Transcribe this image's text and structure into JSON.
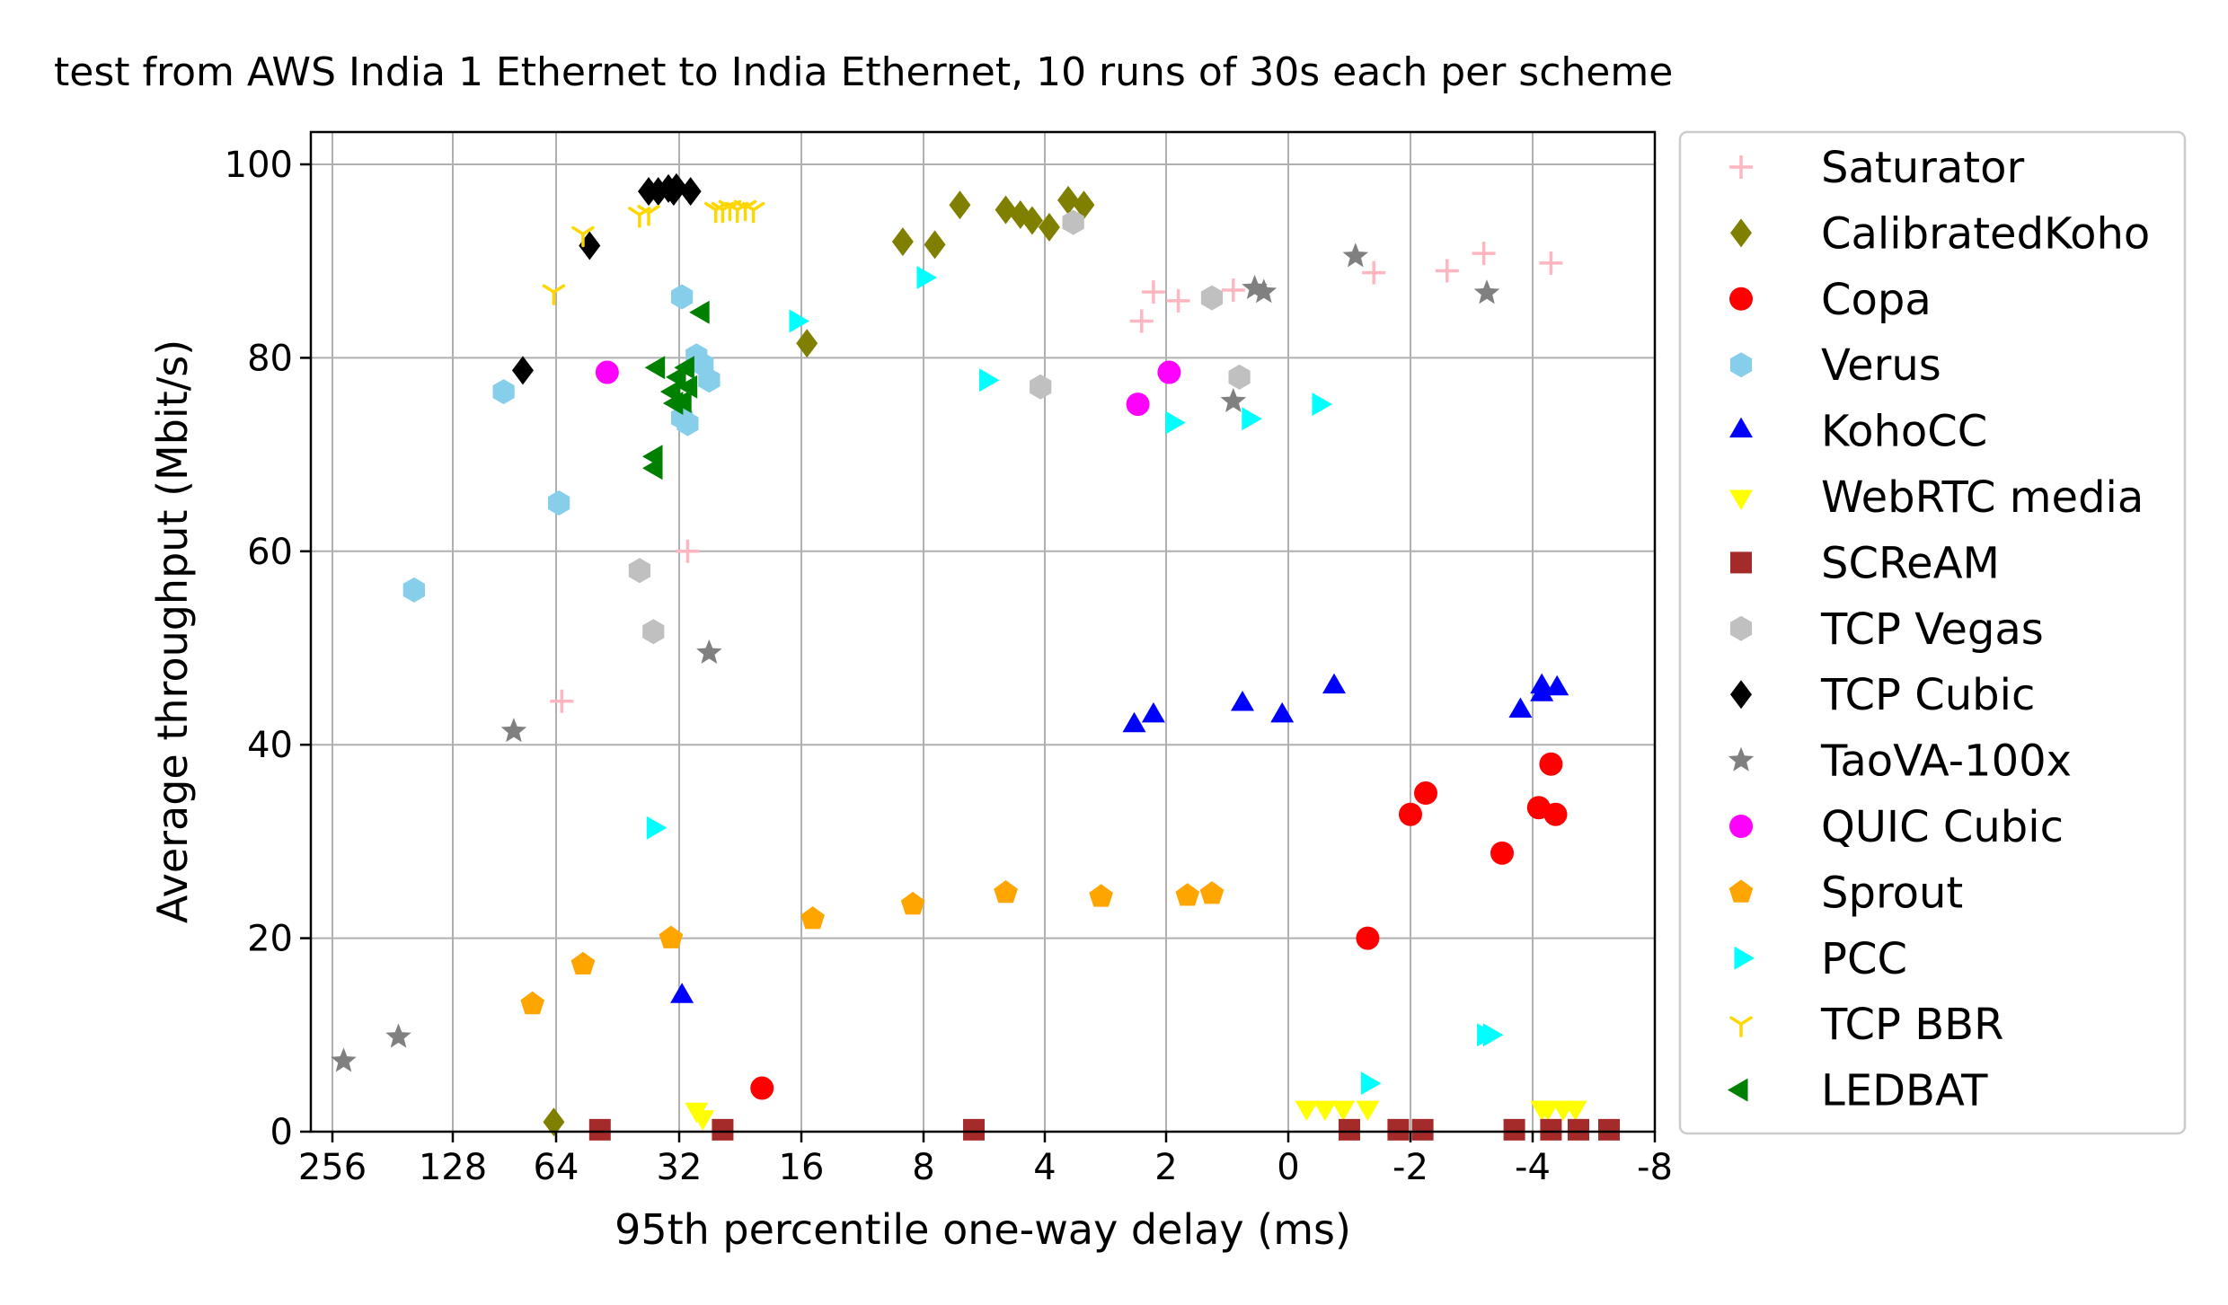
{
  "chart_data": {
    "type": "scatter",
    "title": "test from AWS India 1 Ethernet to India Ethernet, 10 runs of 30s each per scheme",
    "xlabel": "95th percentile one-way delay (ms)",
    "ylabel": "Average throughput (Mbit/s)",
    "x_ticks": [
      256,
      128,
      64,
      32,
      16,
      8,
      4,
      2,
      0,
      -2,
      -4,
      -8
    ],
    "x_tick_labels": [
      "256",
      "128",
      "64",
      "32",
      "16",
      "8",
      "4",
      "2",
      "0",
      "-2",
      "-4",
      "-8"
    ],
    "y_ticks": [
      0,
      20,
      40,
      60,
      80,
      100
    ],
    "y_tick_labels": [
      "0",
      "20",
      "40",
      "60",
      "80",
      "100"
    ],
    "ylim": [
      0,
      104
    ],
    "grid": true,
    "legend_position": "outside-right",
    "series": [
      {
        "name": "Saturator",
        "marker": "plus",
        "color": "#ffb6c1",
        "points": [
          [
            62,
            44.5
          ],
          [
            30.5,
            60
          ],
          [
            2.3,
            83.8
          ],
          [
            2.15,
            86.8
          ],
          [
            1.8,
            85.9
          ],
          [
            0.9,
            87
          ],
          [
            -1.4,
            88.8
          ],
          [
            -2.6,
            89
          ],
          [
            -3.2,
            90.8
          ],
          [
            -4.6,
            89.8
          ]
        ]
      },
      {
        "name": "CalibratedKoho",
        "marker": "diamond",
        "color": "#808000",
        "points": [
          [
            65,
            1
          ],
          [
            15.5,
            81.5
          ],
          [
            9,
            92
          ],
          [
            7.5,
            91.7
          ],
          [
            6.5,
            95.8
          ],
          [
            5,
            95.3
          ],
          [
            4.6,
            94.8
          ],
          [
            4.3,
            94.2
          ],
          [
            3.9,
            93.5
          ],
          [
            3.5,
            96.3
          ],
          [
            3.2,
            95.8
          ]
        ]
      },
      {
        "name": "Copa",
        "marker": "circle",
        "color": "#ff0000",
        "points": [
          [
            20,
            4.5
          ],
          [
            -1.3,
            20
          ],
          [
            -2.0,
            32.8
          ],
          [
            -2.25,
            35
          ],
          [
            -3.5,
            28.8
          ],
          [
            -4.2,
            33.5
          ],
          [
            -4.6,
            38
          ],
          [
            -4.75,
            32.8
          ]
        ]
      },
      {
        "name": "Verus",
        "marker": "hexagon",
        "color": "#87ceeb",
        "points": [
          [
            160,
            56
          ],
          [
            91,
            76.5
          ],
          [
            63,
            65
          ],
          [
            31.5,
            86.3
          ],
          [
            31.5,
            73.8
          ],
          [
            30.5,
            73.2
          ],
          [
            29,
            80.2
          ],
          [
            28,
            79.3
          ],
          [
            27,
            77.7
          ]
        ]
      },
      {
        "name": "KohoCC",
        "marker": "triangle-up",
        "color": "#0000ff",
        "points": [
          [
            31.5,
            14
          ],
          [
            2.4,
            42
          ],
          [
            2.15,
            43
          ],
          [
            0.75,
            44.2
          ],
          [
            0.1,
            43
          ],
          [
            -0.75,
            46
          ],
          [
            -3.8,
            43.5
          ],
          [
            -4.3,
            46
          ],
          [
            -4.3,
            45.2
          ],
          [
            -4.8,
            45.8
          ]
        ]
      },
      {
        "name": "WebRTC media",
        "marker": "triangle-down",
        "color": "#ffff00",
        "points": [
          [
            29,
            2.3
          ],
          [
            28,
            1.5
          ],
          [
            -0.3,
            2.5
          ],
          [
            -0.6,
            2.5
          ],
          [
            -0.9,
            2.5
          ],
          [
            -1.3,
            2.5
          ],
          [
            -4.3,
            2.5
          ],
          [
            -4.5,
            2.5
          ],
          [
            -5.0,
            2.5
          ],
          [
            -5.4,
            2.5
          ]
        ]
      },
      {
        "name": "SCReAM",
        "marker": "square",
        "color": "#a52a2a",
        "points": [
          [
            50,
            0.2
          ],
          [
            25,
            0.2
          ],
          [
            6,
            0.2
          ],
          [
            -1.0,
            0.2
          ],
          [
            -1.8,
            0.2
          ],
          [
            -2.2,
            0.2
          ],
          [
            -3.7,
            0.2
          ],
          [
            -4.6,
            0.2
          ],
          [
            -5.5,
            0.2
          ],
          [
            -6.5,
            0.2
          ]
        ]
      },
      {
        "name": "TCP Vegas",
        "marker": "hexagon",
        "color": "#c0c0c0",
        "points": [
          [
            40,
            58
          ],
          [
            37,
            51.7
          ],
          [
            4.1,
            77
          ],
          [
            3.4,
            94
          ],
          [
            1.25,
            86.2
          ],
          [
            0.8,
            78
          ]
        ]
      },
      {
        "name": "TCP Cubic",
        "marker": "diamond",
        "color": "#000000",
        "points": [
          [
            80,
            78.7
          ],
          [
            53,
            91.6
          ],
          [
            38,
            97.2
          ],
          [
            36,
            97.2
          ],
          [
            34,
            97.5
          ],
          [
            33,
            97.2
          ],
          [
            32.5,
            97.6
          ],
          [
            30,
            97.2
          ]
        ]
      },
      {
        "name": "TaoVA-100x",
        "marker": "star",
        "color": "#808080",
        "points": [
          [
            240,
            7.3
          ],
          [
            175,
            9.8
          ],
          [
            85,
            41.4
          ],
          [
            27,
            49.5
          ],
          [
            0.9,
            75.5
          ],
          [
            0.4,
            86.8
          ],
          [
            0.55,
            87.2
          ],
          [
            -1.1,
            90.5
          ],
          [
            -3.25,
            86.7
          ]
        ]
      },
      {
        "name": "QUIC Cubic",
        "marker": "circle",
        "color": "#ff00ff",
        "points": [
          [
            48,
            78.5
          ],
          [
            2.35,
            75.2
          ],
          [
            1.95,
            78.5
          ]
        ]
      },
      {
        "name": "Sprout",
        "marker": "pentagon",
        "color": "#ffa500",
        "points": [
          [
            75,
            13.2
          ],
          [
            55,
            17.3
          ],
          [
            33.5,
            20
          ],
          [
            15,
            22
          ],
          [
            8.5,
            23.5
          ],
          [
            5,
            24.7
          ],
          [
            2.9,
            24.3
          ],
          [
            1.65,
            24.4
          ],
          [
            1.25,
            24.6
          ]
        ]
      },
      {
        "name": "PCC",
        "marker": "triangle-right",
        "color": "#00ffff",
        "points": [
          [
            37,
            31.4
          ],
          [
            16.5,
            83.8
          ],
          [
            8,
            88.3
          ],
          [
            5.6,
            77.7
          ],
          [
            1.9,
            73.3
          ],
          [
            0.65,
            73.7
          ],
          [
            -0.5,
            75.2
          ],
          [
            -1.3,
            5
          ],
          [
            -3.3,
            10
          ],
          [
            -3.2,
            10
          ]
        ]
      },
      {
        "name": "TCP BBR",
        "marker": "tri-down",
        "color": "#ffd700",
        "points": [
          [
            65,
            86.8
          ],
          [
            55,
            92.8
          ],
          [
            40,
            94.8
          ],
          [
            38,
            95
          ],
          [
            26,
            95.3
          ],
          [
            25,
            95.3
          ],
          [
            24,
            95.5
          ],
          [
            23,
            95.3
          ],
          [
            22,
            95.5
          ],
          [
            21,
            95.3
          ]
        ]
      },
      {
        "name": "LEDBAT",
        "marker": "triangle-left",
        "color": "#008000",
        "points": [
          [
            36,
            79
          ],
          [
            30.5,
            79
          ],
          [
            28,
            84.7
          ],
          [
            32,
            78
          ],
          [
            33,
            76.5
          ],
          [
            32.5,
            75.3
          ],
          [
            31,
            75.5
          ],
          [
            30,
            77
          ],
          [
            36.5,
            68.6
          ],
          [
            36.5,
            69.8
          ]
        ]
      }
    ]
  }
}
